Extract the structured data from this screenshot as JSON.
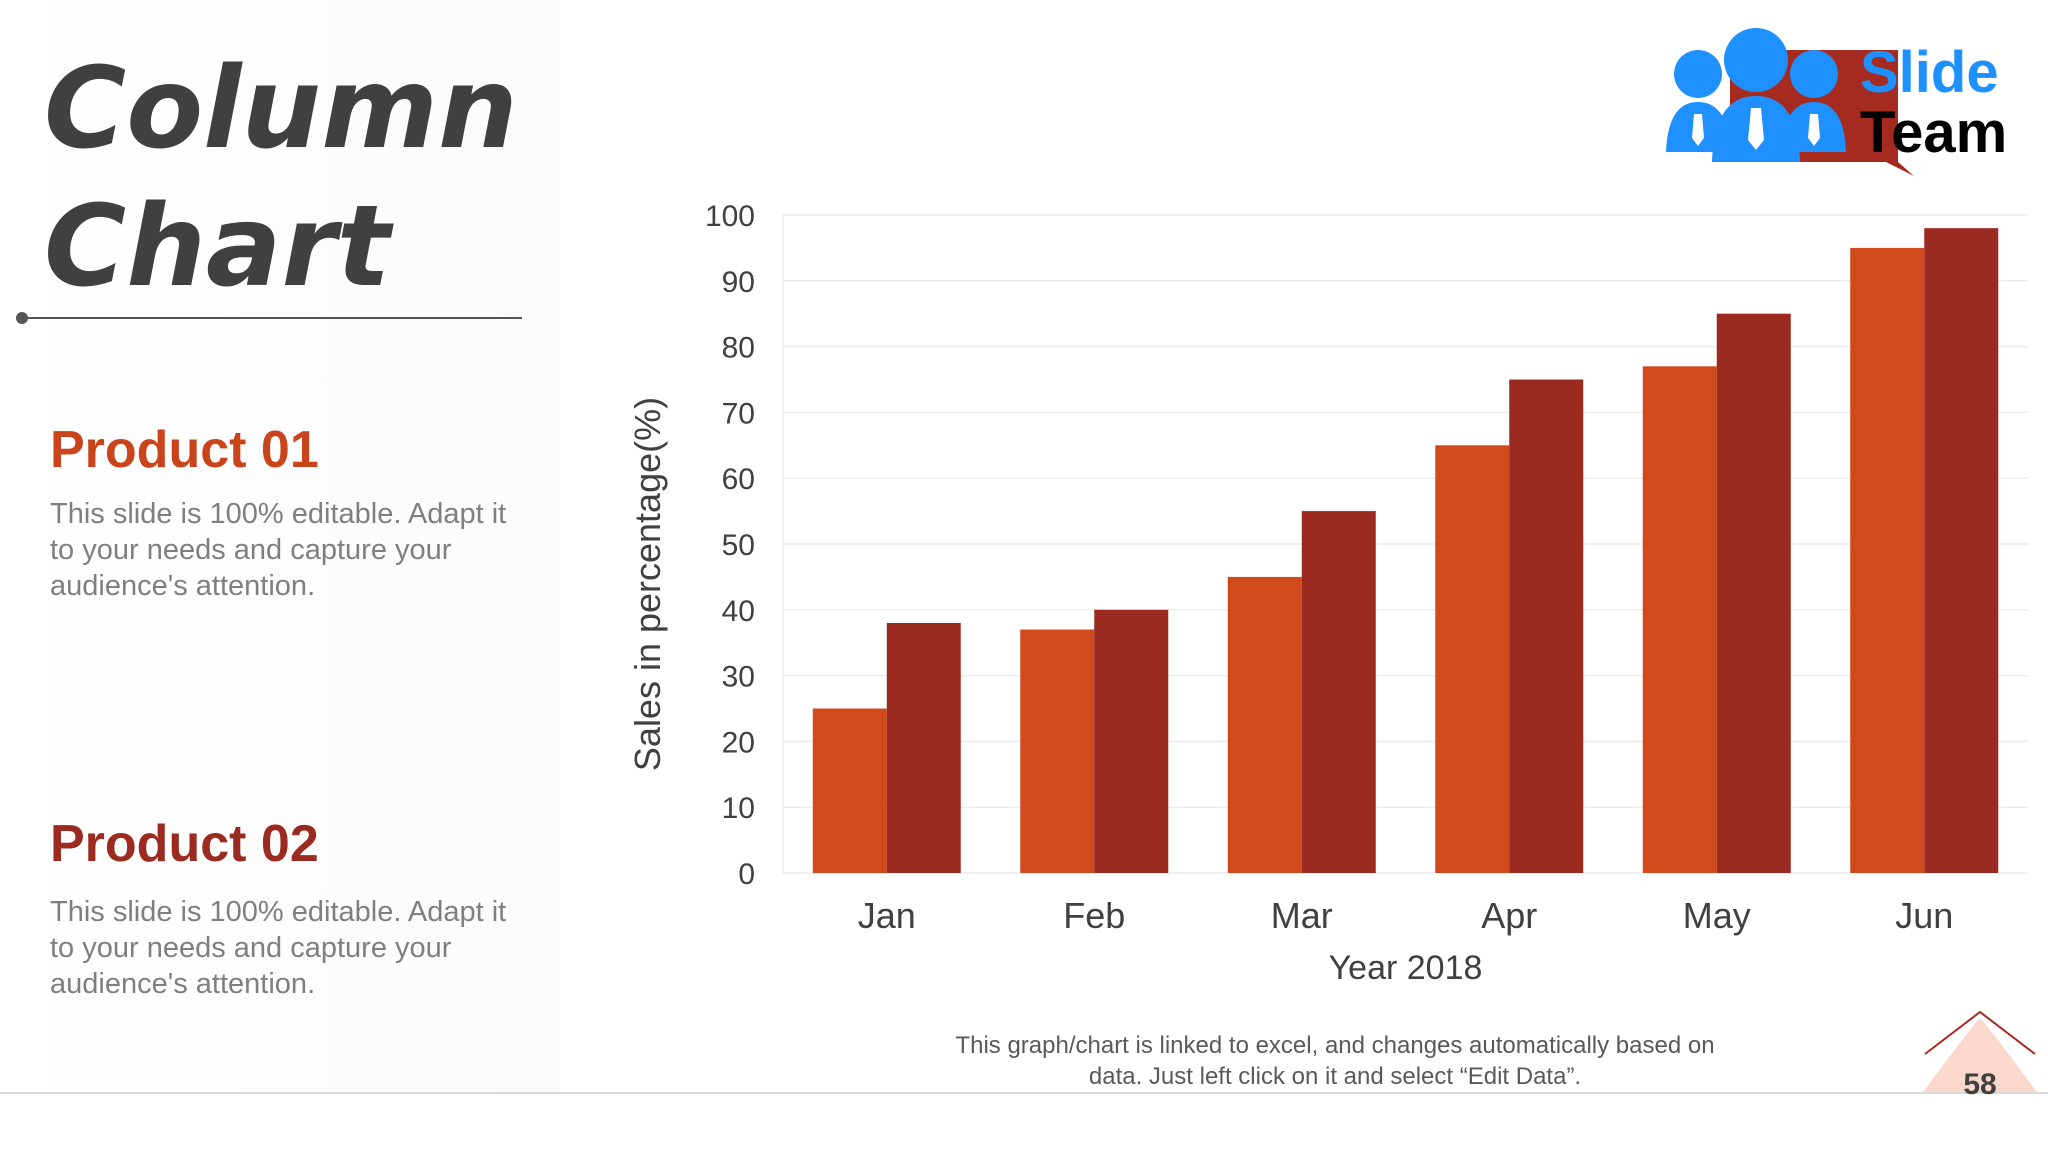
{
  "slide": {
    "title_line1": "Column",
    "title_line2": "Chart",
    "page_number": "58",
    "footnote_line1": "This graph/chart is linked to excel, and changes automatically based on",
    "footnote_line2": "data. Just left click on it and select “Edit Data”."
  },
  "products": [
    {
      "heading": "Product 01",
      "color": "#c9431b",
      "description": "This slide is 100% editable. Adapt it to your needs and capture your audience's attention."
    },
    {
      "heading": "Product 02",
      "color": "#9b2a20",
      "description": "This slide is 100% editable. Adapt it to your needs and capture your audience's attention."
    }
  ],
  "logo": {
    "line1": "Slide",
    "line2": "Team",
    "icon": "people-with-ties-icon",
    "accent_blue": "#1e90ff",
    "accent_red": "#a52a1f"
  },
  "chart_data": {
    "type": "bar",
    "categories": [
      "Jan",
      "Feb",
      "Mar",
      "Apr",
      "May",
      "Jun"
    ],
    "series": [
      {
        "values": [
          25,
          37,
          45,
          65,
          77,
          95
        ],
        "color": "#d04a1c"
      },
      {
        "values": [
          38,
          40,
          55,
          75,
          85,
          98
        ],
        "color": "#9b2a20"
      }
    ],
    "xlabel": "Year 2018",
    "ylabel": "Sales in percentage(%)",
    "ylim": [
      0,
      100
    ],
    "yticks": [
      0,
      10,
      20,
      30,
      40,
      50,
      60,
      70,
      80,
      90,
      100
    ],
    "grid": true,
    "legend": "none"
  }
}
